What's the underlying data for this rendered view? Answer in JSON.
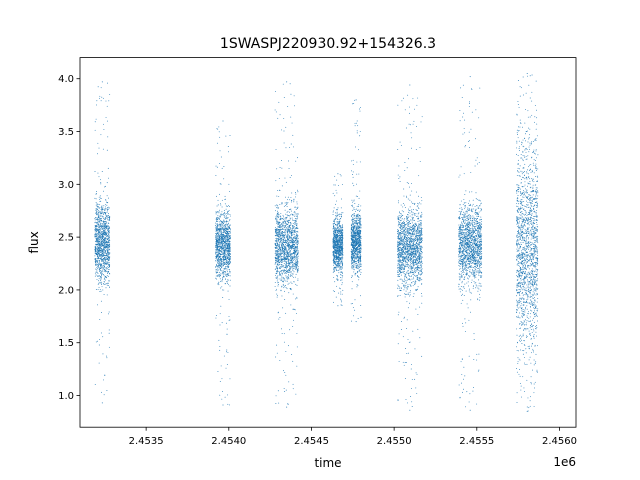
{
  "chart_data": {
    "type": "scatter",
    "title": "1SWASPJ220930.92+154326.3",
    "xlabel": "time",
    "ylabel": "flux",
    "x_offset_label": "1e6",
    "xlim": [
      2453100,
      2456100
    ],
    "ylim": [
      0.7,
      4.2
    ],
    "xticks": [
      {
        "value": 2453500,
        "label": "2.4535"
      },
      {
        "value": 2454000,
        "label": "2.4540"
      },
      {
        "value": 2454500,
        "label": "2.4545"
      },
      {
        "value": 2455000,
        "label": "2.4550"
      },
      {
        "value": 2455500,
        "label": "2.4555"
      },
      {
        "value": 2456000,
        "label": "2.4560"
      }
    ],
    "yticks": [
      {
        "value": 1.0,
        "label": "1.0"
      },
      {
        "value": 1.5,
        "label": "1.5"
      },
      {
        "value": 2.0,
        "label": "2.0"
      },
      {
        "value": 2.5,
        "label": "2.5"
      },
      {
        "value": 3.0,
        "label": "3.0"
      },
      {
        "value": 3.5,
        "label": "3.5"
      },
      {
        "value": 4.0,
        "label": "4.0"
      }
    ],
    "grid": false,
    "marker_color": "#1f77b4",
    "observing_seasons": [
      {
        "x_start": 2453190,
        "x_end": 2453280,
        "median_flux": 2.45,
        "core_spread": 0.18,
        "flux_min": 0.93,
        "flux_max": 3.97
      },
      {
        "x_start": 2453920,
        "x_end": 2454010,
        "median_flux": 2.42,
        "core_spread": 0.16,
        "flux_min": 0.91,
        "flux_max": 3.6
      },
      {
        "x_start": 2454280,
        "x_end": 2454420,
        "median_flux": 2.42,
        "core_spread": 0.18,
        "flux_min": 0.89,
        "flux_max": 3.97
      },
      {
        "x_start": 2454630,
        "x_end": 2454690,
        "median_flux": 2.42,
        "core_spread": 0.12,
        "flux_min": 1.85,
        "flux_max": 3.1
      },
      {
        "x_start": 2454740,
        "x_end": 2454800,
        "median_flux": 2.45,
        "core_spread": 0.14,
        "flux_min": 1.7,
        "flux_max": 3.8
      },
      {
        "x_start": 2455020,
        "x_end": 2455170,
        "median_flux": 2.4,
        "core_spread": 0.18,
        "flux_min": 0.86,
        "flux_max": 3.94
      },
      {
        "x_start": 2455390,
        "x_end": 2455530,
        "median_flux": 2.42,
        "core_spread": 0.18,
        "flux_min": 0.86,
        "flux_max": 4.02
      },
      {
        "x_start": 2455740,
        "x_end": 2455870,
        "median_flux": 2.4,
        "core_spread": 0.5,
        "flux_min": 0.85,
        "flux_max": 4.05
      }
    ]
  }
}
